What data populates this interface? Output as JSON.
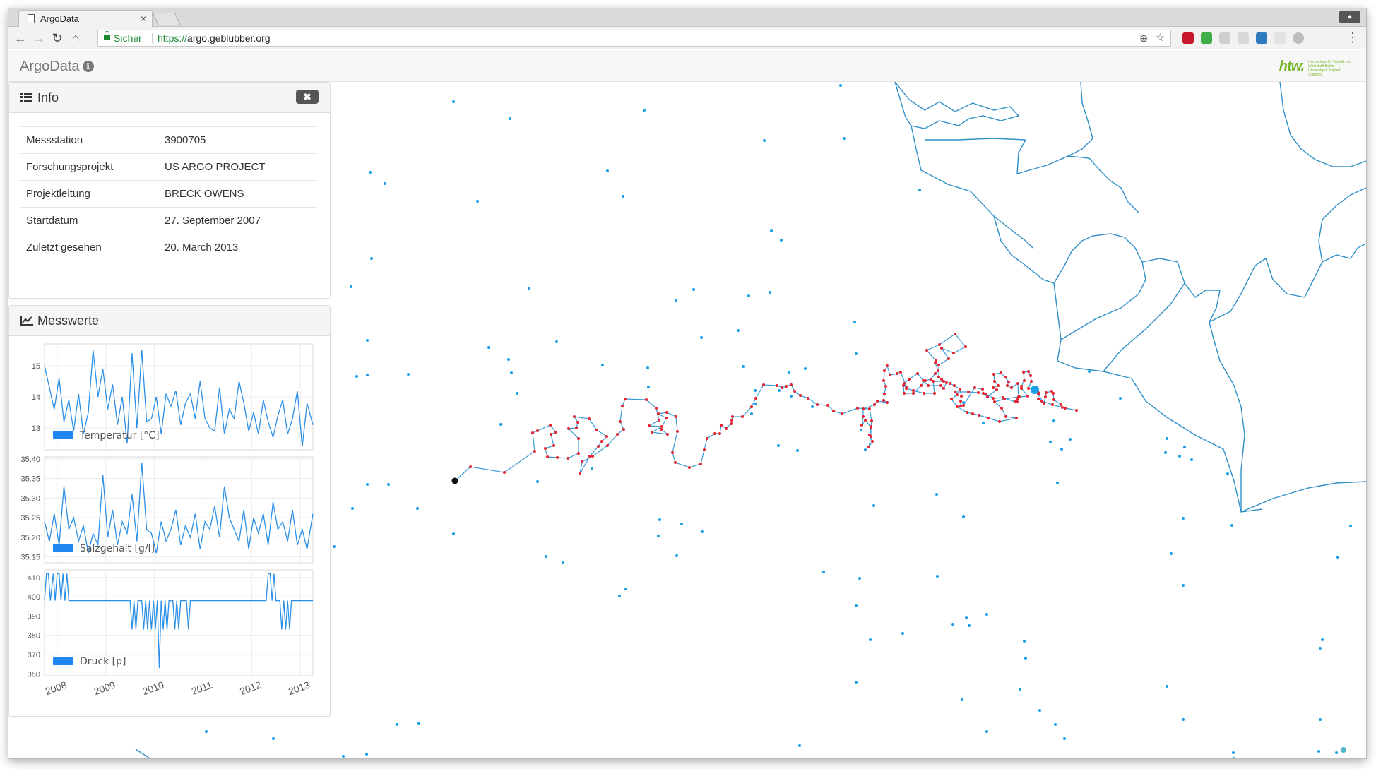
{
  "browser": {
    "tab_title": "ArgoData",
    "tab_close": "×",
    "secure_label": "Sicher",
    "url_scheme": "https://",
    "url_host": "argo.geblubber.org"
  },
  "app": {
    "brand": "ArgoData",
    "logo_text": "htw.",
    "logo_subtitle": "Hochschule für Technik und Wirtschaft Berlin",
    "logo_subtitle2": "University of Applied Sciences"
  },
  "info_panel": {
    "title": "Info",
    "close_glyph": "✖",
    "rows": [
      {
        "label": "Messstation",
        "value": "3900705"
      },
      {
        "label": "Forschungsprojekt",
        "value": "US ARGO PROJECT"
      },
      {
        "label": "Projektleitung",
        "value": "BRECK OWENS"
      },
      {
        "label": "Startdatum",
        "value": "27. September 2007"
      },
      {
        "label": "Zuletzt gesehen",
        "value": "20. March 2013"
      }
    ]
  },
  "measurements_panel": {
    "title": "Messwerte"
  },
  "chart_data": [
    {
      "type": "line",
      "title": "",
      "legend": "Temperatur [°C]",
      "ylim": [
        12.3,
        15.7
      ],
      "yticks": [
        13,
        14,
        15
      ],
      "xlim": [
        2007.74,
        2013.26
      ],
      "color": "#2b8fe8",
      "x": [
        2007.74,
        2007.84,
        2007.94,
        2008.04,
        2008.14,
        2008.24,
        2008.34,
        2008.44,
        2008.54,
        2008.64,
        2008.74,
        2008.84,
        2008.94,
        2009.04,
        2009.14,
        2009.24,
        2009.34,
        2009.44,
        2009.54,
        2009.64,
        2009.74,
        2009.84,
        2009.94,
        2010.04,
        2010.14,
        2010.24,
        2010.34,
        2010.44,
        2010.54,
        2010.64,
        2010.74,
        2010.84,
        2010.94,
        2011.04,
        2011.14,
        2011.24,
        2011.34,
        2011.44,
        2011.54,
        2011.64,
        2011.74,
        2011.84,
        2011.94,
        2012.04,
        2012.14,
        2012.24,
        2012.34,
        2012.44,
        2012.54,
        2012.64,
        2012.74,
        2012.84,
        2012.94,
        2013.04,
        2013.14,
        2013.26
      ],
      "y": [
        15.0,
        14.3,
        13.6,
        14.6,
        13.2,
        13.9,
        12.9,
        14.1,
        12.8,
        13.5,
        15.5,
        14.0,
        14.9,
        13.6,
        14.4,
        13.1,
        14.0,
        12.5,
        15.4,
        13.0,
        15.5,
        13.2,
        13.3,
        14.0,
        12.8,
        14.1,
        13.7,
        14.2,
        13.1,
        13.8,
        14.1,
        13.3,
        14.5,
        13.3,
        13.0,
        12.9,
        14.3,
        12.8,
        13.6,
        13.3,
        14.5,
        13.8,
        12.9,
        13.5,
        12.8,
        13.9,
        13.2,
        12.7,
        13.4,
        13.9,
        12.8,
        13.3,
        14.2,
        12.4,
        13.8,
        13.1
      ]
    },
    {
      "type": "line",
      "title": "",
      "legend": "Salzgehalt [g/l]",
      "ylim": [
        35.135,
        35.405
      ],
      "yticks": [
        35.15,
        35.2,
        35.25,
        35.3,
        35.35,
        35.4
      ],
      "xlim": [
        2007.74,
        2013.26
      ],
      "color": "#2b8fe8",
      "x": [
        2007.74,
        2007.84,
        2007.94,
        2008.04,
        2008.14,
        2008.24,
        2008.34,
        2008.44,
        2008.54,
        2008.64,
        2008.74,
        2008.84,
        2008.94,
        2009.04,
        2009.14,
        2009.24,
        2009.34,
        2009.44,
        2009.54,
        2009.64,
        2009.74,
        2009.84,
        2009.94,
        2010.04,
        2010.14,
        2010.24,
        2010.34,
        2010.44,
        2010.54,
        2010.64,
        2010.74,
        2010.84,
        2010.94,
        2011.04,
        2011.14,
        2011.24,
        2011.34,
        2011.44,
        2011.54,
        2011.64,
        2011.74,
        2011.84,
        2011.94,
        2012.04,
        2012.14,
        2012.24,
        2012.34,
        2012.44,
        2012.54,
        2012.64,
        2012.74,
        2012.84,
        2012.94,
        2013.04,
        2013.14,
        2013.26
      ],
      "y": [
        35.24,
        35.19,
        35.26,
        35.18,
        35.33,
        35.22,
        35.25,
        35.19,
        35.23,
        35.16,
        35.21,
        35.18,
        35.36,
        35.2,
        35.27,
        35.18,
        35.24,
        35.21,
        35.31,
        35.19,
        35.39,
        35.22,
        35.21,
        35.16,
        35.24,
        35.19,
        35.22,
        35.27,
        35.18,
        35.23,
        35.2,
        35.26,
        35.17,
        35.24,
        35.22,
        35.28,
        35.2,
        35.33,
        35.25,
        35.22,
        35.19,
        35.27,
        35.17,
        35.25,
        35.21,
        35.26,
        35.18,
        35.29,
        35.22,
        35.24,
        35.19,
        35.27,
        35.18,
        35.22,
        35.17,
        35.26
      ]
    },
    {
      "type": "line",
      "title": "",
      "legend": "Druck [p]",
      "ylim": [
        359,
        414
      ],
      "yticks": [
        360,
        370,
        380,
        390,
        400,
        410
      ],
      "xlim": [
        2007.74,
        2013.26
      ],
      "xticks": [
        "2008",
        "2009",
        "2010",
        "2011",
        "2012",
        "2013"
      ],
      "color": "#2b8fe8",
      "x": [
        2007.74,
        2007.78,
        2007.82,
        2007.86,
        2007.92,
        2007.96,
        2008.0,
        2008.04,
        2008.08,
        2008.12,
        2008.16,
        2008.2,
        2008.24,
        2008.3,
        2008.9,
        2009.5,
        2009.54,
        2009.58,
        2009.62,
        2009.66,
        2009.7,
        2009.74,
        2009.78,
        2009.82,
        2009.86,
        2009.9,
        2009.94,
        2009.98,
        2010.02,
        2010.06,
        2010.1,
        2010.14,
        2010.18,
        2010.22,
        2010.26,
        2010.3,
        2010.34,
        2010.38,
        2010.42,
        2010.46,
        2010.5,
        2010.54,
        2010.58,
        2010.62,
        2010.66,
        2010.7,
        2010.74,
        2010.78,
        2010.82,
        2010.86,
        2011.2,
        2011.6,
        2012.0,
        2012.3,
        2012.34,
        2012.38,
        2012.42,
        2012.46,
        2012.5,
        2012.54,
        2012.58,
        2012.62,
        2012.66,
        2012.7,
        2012.74,
        2012.78,
        2012.82,
        2012.86,
        2012.9,
        2012.94,
        2012.98,
        2013.02,
        2013.06,
        2013.1,
        2013.14,
        2013.18,
        2013.26
      ],
      "y": [
        398,
        412,
        412,
        398,
        412,
        398,
        412,
        412,
        398,
        412,
        398,
        412,
        398,
        398,
        398,
        398,
        383,
        398,
        383,
        398,
        398,
        398,
        383,
        398,
        383,
        398,
        383,
        398,
        383,
        398,
        363,
        398,
        383,
        398,
        383,
        398,
        398,
        398,
        383,
        398,
        383,
        398,
        398,
        398,
        398,
        383,
        398,
        398,
        398,
        398,
        398,
        398,
        398,
        398,
        412,
        412,
        398,
        412,
        398,
        398,
        398,
        383,
        398,
        383,
        398,
        383,
        398,
        398,
        398,
        398,
        398,
        398,
        398,
        398,
        398,
        398,
        398
      ]
    }
  ],
  "map": {
    "float_track_color": "#e8222e",
    "track_line_color": "#3a9bd8",
    "other_floats_color": "#1b9de8",
    "coast_color": "#2f8fc8",
    "start_marker_color": "#111111",
    "current_marker_color": "#1b9de8"
  }
}
